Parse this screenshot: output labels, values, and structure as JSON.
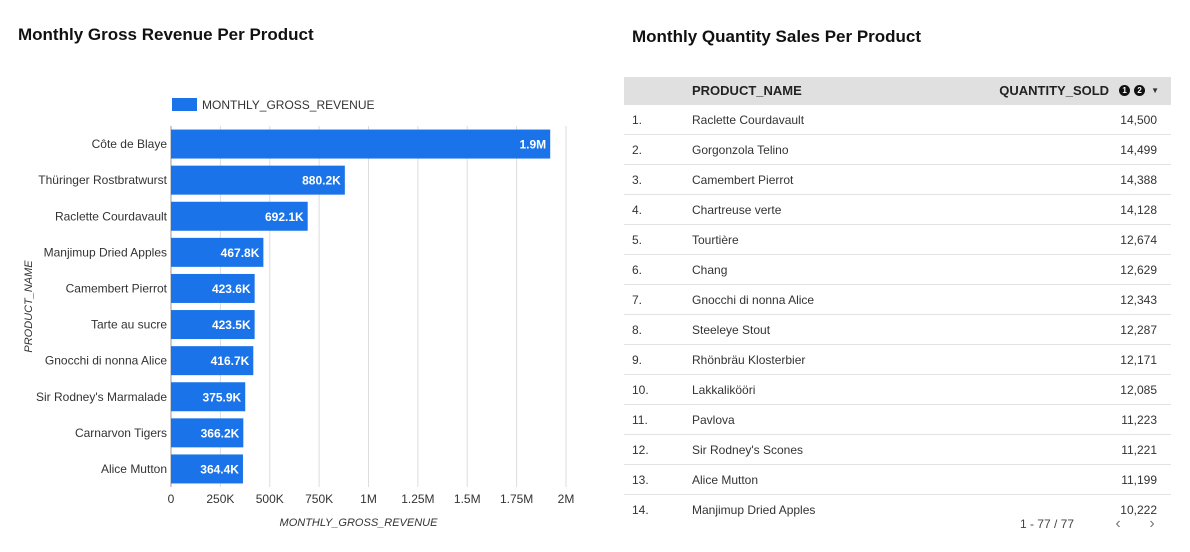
{
  "left_panel": {
    "title": "Monthly Gross Revenue Per Product"
  },
  "right_panel": {
    "title": "Monthly Quantity Sales Per Product"
  },
  "colors": {
    "bar": "#1a73e8",
    "grid": "#dddddd",
    "header_bg": "#e0e0e0"
  },
  "chart_data": {
    "type": "bar",
    "orientation": "horizontal",
    "title": "Monthly Gross Revenue Per Product",
    "xlabel": "MONTHLY_GROSS_REVENUE",
    "ylabel": "PRODUCT_NAME",
    "legend": "top-left",
    "grid": true,
    "xlim": [
      0,
      2000000
    ],
    "x_ticks": [
      {
        "value": 0,
        "label": "0"
      },
      {
        "value": 250000,
        "label": "250K"
      },
      {
        "value": 500000,
        "label": "500K"
      },
      {
        "value": 750000,
        "label": "750K"
      },
      {
        "value": 1000000,
        "label": "1M"
      },
      {
        "value": 1250000,
        "label": "1.25M"
      },
      {
        "value": 1500000,
        "label": "1.5M"
      },
      {
        "value": 1750000,
        "label": "1.75M"
      },
      {
        "value": 2000000,
        "label": "2M"
      }
    ],
    "categories": [
      "Côte de Blaye",
      "Thüringer Rostbratwurst",
      "Raclette Courdavault",
      "Manjimup Dried Apples",
      "Camembert Pierrot",
      "Tarte au sucre",
      "Gnocchi di nonna Alice",
      "Sir Rodney's Marmalade",
      "Carnarvon Tigers",
      "Alice Mutton"
    ],
    "series": [
      {
        "name": "MONTHLY_GROSS_REVENUE",
        "values": [
          1920000,
          880200,
          692100,
          467800,
          423600,
          423500,
          416700,
          375900,
          366200,
          364400
        ],
        "data_labels": [
          "1.9M",
          "880.2K",
          "692.1K",
          "467.8K",
          "423.6K",
          "423.5K",
          "416.7K",
          "375.9K",
          "366.2K",
          "364.4K"
        ]
      }
    ]
  },
  "table": {
    "columns": [
      "PRODUCT_NAME",
      "QUANTITY_SOLD"
    ],
    "badges": [
      "1",
      "2"
    ],
    "sort_icon": "caret-down-icon",
    "rows": [
      {
        "idx": "1.",
        "name": "Raclette Courdavault",
        "qty": "14,500"
      },
      {
        "idx": "2.",
        "name": "Gorgonzola Telino",
        "qty": "14,499"
      },
      {
        "idx": "3.",
        "name": "Camembert Pierrot",
        "qty": "14,388"
      },
      {
        "idx": "4.",
        "name": "Chartreuse verte",
        "qty": "14,128"
      },
      {
        "idx": "5.",
        "name": "Tourtière",
        "qty": "12,674"
      },
      {
        "idx": "6.",
        "name": "Chang",
        "qty": "12,629"
      },
      {
        "idx": "7.",
        "name": "Gnocchi di nonna Alice",
        "qty": "12,343"
      },
      {
        "idx": "8.",
        "name": "Steeleye Stout",
        "qty": "12,287"
      },
      {
        "idx": "9.",
        "name": "Rhönbräu Klosterbier",
        "qty": "12,171"
      },
      {
        "idx": "10.",
        "name": "Lakkalikööri",
        "qty": "12,085"
      },
      {
        "idx": "11.",
        "name": "Pavlova",
        "qty": "11,223"
      },
      {
        "idx": "12.",
        "name": "Sir Rodney's Scones",
        "qty": "11,221"
      },
      {
        "idx": "13.",
        "name": "Alice Mutton",
        "qty": "11,199"
      },
      {
        "idx": "14.",
        "name": "Manjimup Dried Apples",
        "qty": "10,222"
      }
    ]
  },
  "pager": {
    "text": "1 - 77 / 77",
    "prev_icon": "chevron-left-icon",
    "next_icon": "chevron-right-icon"
  }
}
